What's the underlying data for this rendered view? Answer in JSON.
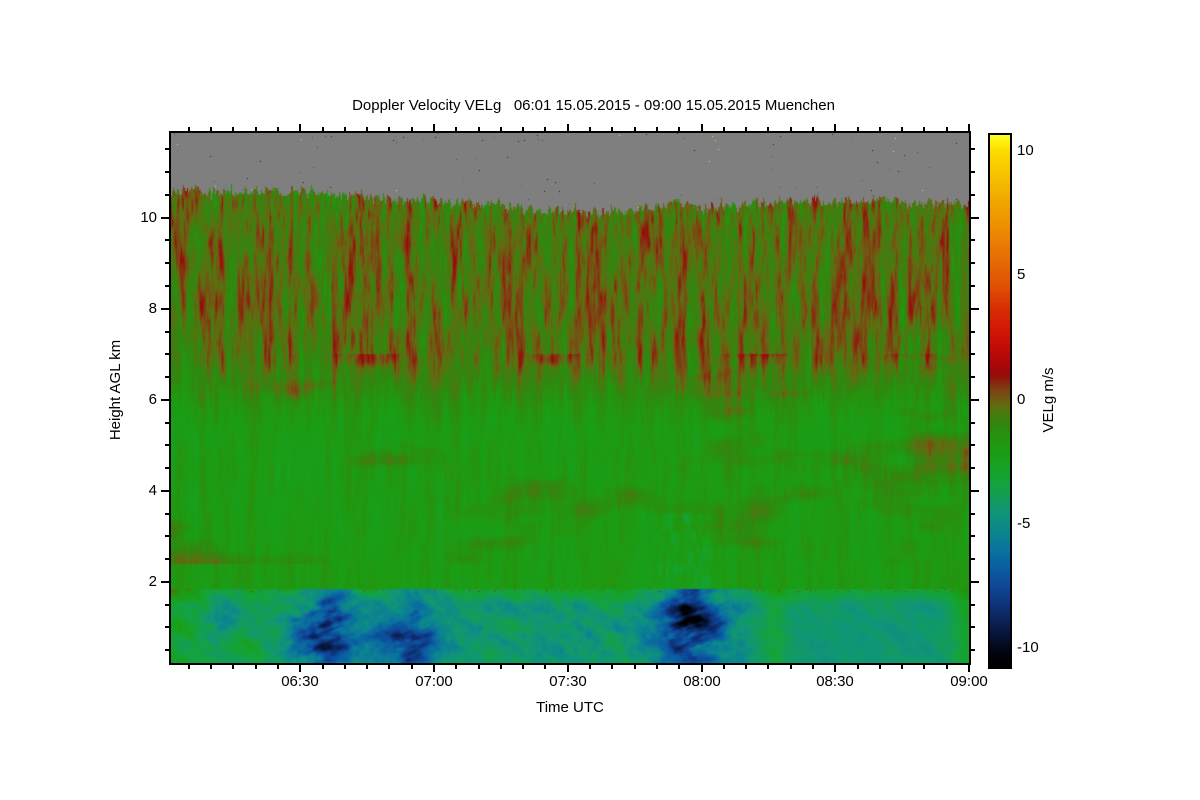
{
  "figure": {
    "background_color": "#ffffff",
    "text_color": "#000000"
  },
  "chart_data": {
    "type": "heatmap",
    "title": "Doppler Velocity VELg   06:01 15.05.2015 - 09:00 15.05.2015 Muenchen",
    "xlabel": "Time UTC",
    "ylabel": "Height AGL km",
    "x_range": [
      "06:01",
      "09:00"
    ],
    "x_range_minutes": [
      361,
      540
    ],
    "x_ticks": [
      {
        "label": "06:30",
        "minute": 390
      },
      {
        "label": "07:00",
        "minute": 420
      },
      {
        "label": "07:30",
        "minute": 450
      },
      {
        "label": "08:00",
        "minute": 480
      },
      {
        "label": "08:30",
        "minute": 510
      },
      {
        "label": "09:00",
        "minute": 540
      }
    ],
    "x_minor_step_minutes": 5,
    "y_range_km": [
      0.22,
      11.86
    ],
    "y_ticks": [
      {
        "label": "2",
        "km": 2
      },
      {
        "label": "4",
        "km": 4
      },
      {
        "label": "6",
        "km": 6
      },
      {
        "label": "8",
        "km": 8
      },
      {
        "label": "10",
        "km": 10
      }
    ],
    "y_minor_step_km": 0.5,
    "grid": false,
    "colorbar": {
      "label": "VELg m/s",
      "range": [
        -10.75,
        10.65
      ],
      "ticks": [
        {
          "label": "10",
          "value": 10
        },
        {
          "label": "5",
          "value": 5
        },
        {
          "label": "0",
          "value": 0
        },
        {
          "label": "-5",
          "value": -5
        },
        {
          "label": "-10",
          "value": -10
        }
      ],
      "minor_step": 1,
      "stops": [
        [
          -10.75,
          "#000000"
        ],
        [
          -10.2,
          "#01040e"
        ],
        [
          -9.5,
          "#061436"
        ],
        [
          -9.0,
          "#0a2050"
        ],
        [
          -8.5,
          "#0c2c6c"
        ],
        [
          -8.0,
          "#0e3a84"
        ],
        [
          -7.5,
          "#0e4896"
        ],
        [
          -7.0,
          "#0c56a0"
        ],
        [
          -6.5,
          "#0a66a0"
        ],
        [
          -6.0,
          "#0a749c"
        ],
        [
          -5.5,
          "#0c8292"
        ],
        [
          -5.0,
          "#0e8c84"
        ],
        [
          -4.5,
          "#109676"
        ],
        [
          -4.0,
          "#129c5c"
        ],
        [
          -3.5,
          "#14a244"
        ],
        [
          -3.0,
          "#16a22e"
        ],
        [
          -2.5,
          "#18a01e"
        ],
        [
          -2.0,
          "#1c9c14"
        ],
        [
          -1.5,
          "#26930f"
        ],
        [
          -1.0,
          "#30880f"
        ],
        [
          -0.6,
          "#447c10"
        ],
        [
          -0.3,
          "#5c7010"
        ],
        [
          0.0,
          "#6e5c12"
        ],
        [
          0.3,
          "#7a4812"
        ],
        [
          0.6,
          "#843010"
        ],
        [
          1.0,
          "#960c0a"
        ],
        [
          1.5,
          "#ae0808"
        ],
        [
          2.0,
          "#c00a08"
        ],
        [
          2.5,
          "#cc1208"
        ],
        [
          3.0,
          "#d41c06"
        ],
        [
          3.5,
          "#d82804"
        ],
        [
          4.0,
          "#da3a04"
        ],
        [
          4.5,
          "#e04e04"
        ],
        [
          5.0,
          "#e25c06"
        ],
        [
          6.0,
          "#e87606"
        ],
        [
          7.0,
          "#ee9000"
        ],
        [
          8.0,
          "#f0a800"
        ],
        [
          9.0,
          "#f6c200"
        ],
        [
          10.0,
          "#fcdc00"
        ],
        [
          10.65,
          "#ffff20"
        ]
      ]
    },
    "no_data_color": "#7f7f7f",
    "noise_speck_colors": [
      "#0a2050",
      "#0e8c84",
      "#ffe000",
      "#4a1206",
      "#0c56a0"
    ],
    "boundary_layer_top_km": 1.85,
    "cloud_top_profile": [
      [
        361,
        10.62
      ],
      [
        375,
        10.55
      ],
      [
        390,
        10.6
      ],
      [
        400,
        10.52
      ],
      [
        410,
        10.42
      ],
      [
        420,
        10.38
      ],
      [
        430,
        10.3
      ],
      [
        440,
        10.22
      ],
      [
        449,
        10.15
      ],
      [
        458,
        10.12
      ],
      [
        466,
        10.18
      ],
      [
        475,
        10.28
      ],
      [
        483,
        10.22
      ],
      [
        492,
        10.32
      ],
      [
        500,
        10.38
      ],
      [
        510,
        10.34
      ],
      [
        520,
        10.4
      ],
      [
        530,
        10.3
      ],
      [
        540,
        10.28
      ]
    ],
    "downdraft_patches": [
      {
        "time": "06:12",
        "minute": 372,
        "width_min": 5,
        "amp_ms": 2.5,
        "h_center_km": 1.2,
        "h_width_km": 0.6
      },
      {
        "time": "06:35",
        "minute": 395,
        "width_min": 9,
        "amp_ms": 5.4,
        "h_center_km": 0.95,
        "h_width_km": 0.85
      },
      {
        "time": "06:55",
        "minute": 415,
        "width_min": 6,
        "amp_ms": 4.6,
        "h_center_km": 0.75,
        "h_width_km": 0.7
      },
      {
        "time": "07:58",
        "minute": 478,
        "width_min": 8,
        "amp_ms": 5.8,
        "h_center_km": 1.05,
        "h_width_km": 0.95
      }
    ],
    "regions": [
      {
        "name": "no-data",
        "height_km": [
          10.5,
          11.86
        ],
        "description": "grey area above cloud top with sporadic single-pixel colored noise specks"
      },
      {
        "name": "cloud-layer-upper",
        "height_km": [
          6.5,
          10.5
        ],
        "velocity_ms_range": [
          -2.5,
          3.5
        ],
        "description": "dense vertical streaks of red updrafts and green downdrafts, densest reds 06:05-06:20, 07:20-07:50, 08:00-08:20"
      },
      {
        "name": "cloud-layer-mid",
        "height_km": [
          1.85,
          6.5
        ],
        "velocity_ms_range": [
          -2.8,
          0.8
        ],
        "description": "mostly uniform green near -1.5 to -2 m/s with faint olive-brown smudges, e.g. near 06:50 at 6 km"
      },
      {
        "name": "boundary-layer",
        "height_km": [
          0.22,
          1.85
        ],
        "velocity_ms_range": [
          -9.5,
          -2
        ],
        "description": "teal background, dark navy downdraft patches near 06:35, 06:55, 07:58; smooth teal after 08:10; thin bright-green strip just below the 1.85 km interface"
      }
    ],
    "render_seed": 42
  }
}
